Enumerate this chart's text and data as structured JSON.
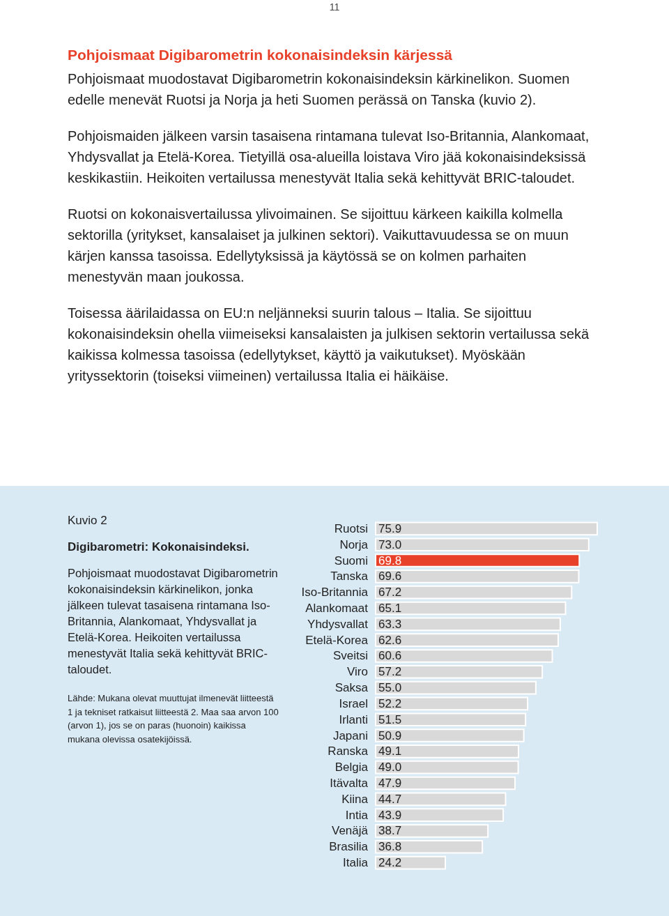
{
  "chart_data": {
    "type": "bar",
    "orientation": "horizontal",
    "title": "Digibarometri: Kokonaisindeksi.",
    "subtitle": "Pohjoismaat muodostavat Digibarometrin kokonaisindeksin kärkinelikon, jonka jälkeen tulevat tasaisena rintamana Iso-Britannia, Alankomaat, Yhdysvallat ja Etelä-Korea. Heikoiten vertailussa menestyvät Italia sekä kehittyvät BRIC-taloudet.",
    "annotations": [
      "11",
      "Pohjoismaat Digibarometrin kokonaisindeksin kärjessä",
      "Pohjoismaat muodostavat Digibarometrin kokonaisindeksin kärkinelikon. Suomen edelle menevät Ruotsi ja Norja ja heti Suomen perässä on Tanska (kuvio 2).",
      "Pohjoismaiden jälkeen varsin tasaisena rintamana tulevat Iso-Britannia, Alankomaat, Yhdysvallat ja Etelä-Korea. Tietyillä osa-alueilla loistava Viro jää kokonaisindeksissä keskikastiin. Heikoiten vertailussa menestyvät Italia sekä kehittyvät BRIC-taloudet.",
      "Ruotsi on kokonaisvertailussa ylivoimainen. Se sijoittuu kärkeen kaikilla kolmella sektorilla (yritykset, kansalaiset ja julkinen sektori). Vaikuttavuudessa se on muun kärjen kanssa tasoissa. Edellytyksissä ja käytössä se on kolmen parhaiten menestyvän maan joukossa.",
      "Toisessa äärilaidassa on EU:n neljänneksi suurin talous – Italia. Se sijoittuu kokonaisindeksin ohella viimeiseksi kansalaisten ja julkisen sektorin vertailussa sekä kaikissa kolmessa tasoissa (edellytykset, käyttö ja vaikutukset). Myöskään yrityssektorin (toiseksi viimeinen) vertailussa Italia ei häikäise.",
      "Kuvio 2",
      "Lähde: Mukana olevat muuttujat ilmenevät liitteestä 1 ja tekniset ratkaisut liitteestä 2. Maa saa arvon 100 (arvon 1), jos se on paras (huonoin) kaikissa mukana olevissa osatekijöissä."
    ],
    "categories": [
      "Ruotsi",
      "Norja",
      "Suomi",
      "Tanska",
      "Iso-Britannia",
      "Alankomaat",
      "Yhdysvallat",
      "Etelä-Korea",
      "Sveitsi",
      "Viro",
      "Saksa",
      "Israel",
      "Irlanti",
      "Japani",
      "Ranska",
      "Belgia",
      "Itävalta",
      "Kiina",
      "Intia",
      "Venäjä",
      "Brasilia",
      "Italia"
    ],
    "values": [
      75.9,
      73.0,
      69.8,
      69.6,
      67.2,
      65.1,
      63.3,
      62.6,
      60.6,
      57.2,
      55.0,
      52.2,
      51.5,
      50.9,
      49.1,
      49.0,
      47.9,
      44.7,
      43.9,
      38.7,
      36.8,
      24.2
    ],
    "colors": [
      "#d9d9d9",
      "#d9d9d9",
      "#e8412a",
      "#d9d9d9",
      "#d9d9d9",
      "#d9d9d9",
      "#d9d9d9",
      "#d9d9d9",
      "#d9d9d9",
      "#d9d9d9",
      "#d9d9d9",
      "#d9d9d9",
      "#d9d9d9",
      "#d9d9d9",
      "#d9d9d9",
      "#d9d9d9",
      "#d9d9d9",
      "#d9d9d9",
      "#d9d9d9",
      "#d9d9d9",
      "#d9d9d9",
      "#d9d9d9"
    ],
    "value_labels": [
      "75.9",
      "73.0",
      "69.8",
      "69.6",
      "67.2",
      "65.1",
      "63.3",
      "62.6",
      "60.6",
      "57.2",
      "55.0",
      "52.2",
      "51.5",
      "50.9",
      "49.1",
      "49.0",
      "47.9",
      "44.7",
      "43.9",
      "38.7",
      "36.8",
      "24.2"
    ]
  }
}
